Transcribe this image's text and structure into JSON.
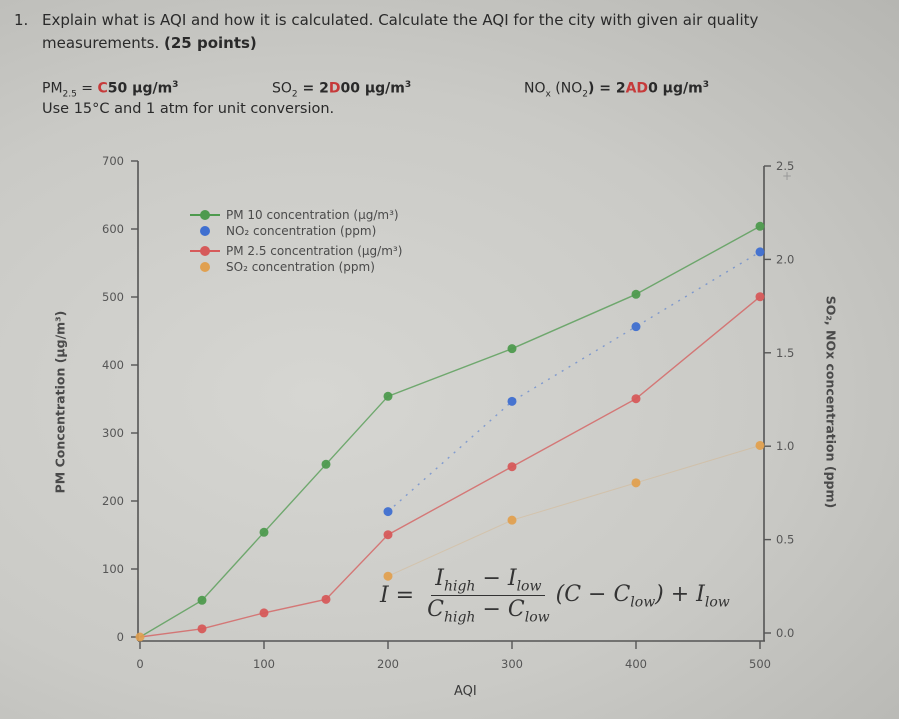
{
  "question": {
    "number": "1.",
    "text_line1": "Explain what is AQI and how it is calculated. Calculate the AQI for the city with given air quality",
    "text_line2": "measurements. ",
    "points": "(25 points)",
    "given": {
      "pm25_label": "PM",
      "pm25_sub": "2.5",
      "pm25_eq": " = ",
      "pm25_var": "C",
      "pm25_value": "50 µg/m",
      "so2_label": "SO",
      "so2_sub": "2",
      "so2_eq": " = 2",
      "so2_var": "D",
      "so2_value": "00 µg/m",
      "nox_label": "NO",
      "nox_sub": "x",
      "nox_paren": " (NO",
      "nox_paren_sub": "2",
      "nox_eq": ") = 2",
      "nox_var": "AD",
      "nox_value": "0 µg/m",
      "cube": "3"
    },
    "note": "Use 15°C and 1 atm for unit conversion."
  },
  "formula": {
    "lhs": "I =",
    "num": "I_high − I_low",
    "den": "C_high − C_low",
    "rhs": "(C − C_low) + I_low"
  },
  "chart_data": {
    "type": "line",
    "title": "",
    "xlabel": "AQI",
    "ylabel": "PM Concentration (µg/m³)",
    "y2label": "SO₂, NOx concentration (ppm)",
    "xlim": [
      0,
      500
    ],
    "ylim": [
      0,
      700
    ],
    "y2lim": [
      0,
      2.5
    ],
    "x_ticks": [
      0,
      100,
      200,
      300,
      400,
      500
    ],
    "y_ticks": [
      0,
      100,
      200,
      300,
      400,
      500,
      600,
      700
    ],
    "y2_ticks": [
      "0.0",
      "0.5",
      "1.0",
      "1.5",
      "2.0",
      "2.5"
    ],
    "grid": false,
    "legend_position": "upper left",
    "series": [
      {
        "name": "PM 10 concentration (µg/m³)",
        "axis": "left",
        "color": "#4e9a4e",
        "line": "solid",
        "x": [
          0,
          50,
          100,
          150,
          200,
          300,
          400,
          500
        ],
        "values": [
          0,
          54,
          154,
          254,
          354,
          424,
          504,
          604
        ]
      },
      {
        "name": "NO₂ concentration (ppm)",
        "axis": "right",
        "color": "#3f6fd0",
        "line": "dotted",
        "x": [
          200,
          300,
          400,
          500
        ],
        "values": [
          0.65,
          1.24,
          1.64,
          2.04
        ]
      },
      {
        "name": "PM 2.5 concentration (µg/m³)",
        "axis": "left",
        "color": "#d65a5a",
        "line": "solid",
        "x": [
          0,
          50,
          100,
          150,
          200,
          300,
          400,
          500
        ],
        "values": [
          0,
          12,
          35.4,
          55.4,
          150.4,
          250.4,
          350.4,
          500.4
        ]
      },
      {
        "name": "SO₂ concentration (ppm)",
        "axis": "right",
        "color": "#e0a050",
        "line": "faint",
        "x": [
          200,
          300,
          400,
          500
        ],
        "values": [
          0.304,
          0.604,
          0.804,
          1.004
        ]
      }
    ],
    "legend": [
      "PM 10 concentration (µg/m³)",
      "NO₂ concentration (ppm)",
      "PM 2.5 concentration (µg/m³)",
      "SO₂ concentration (ppm)"
    ]
  }
}
